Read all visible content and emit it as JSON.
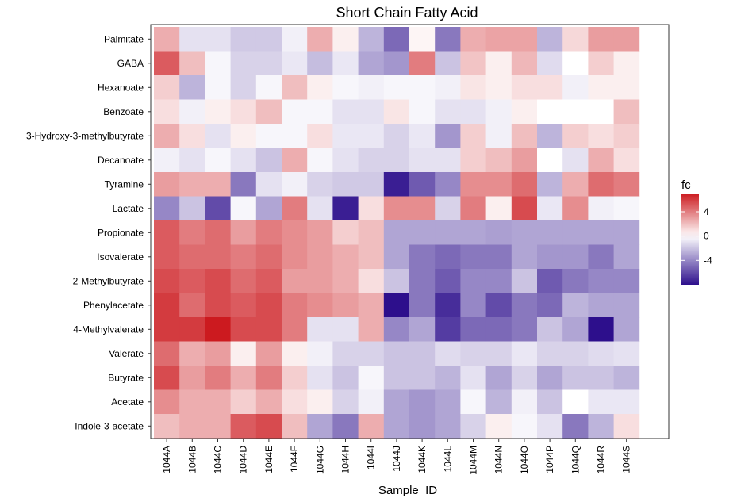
{
  "chart_data": {
    "type": "heatmap",
    "title": "Short Chain Fatty Acid",
    "xlabel": "Sample_ID",
    "ylabel": "",
    "x": [
      "1044A",
      "1044B",
      "1044C",
      "1044D",
      "1044E",
      "1044F",
      "1044G",
      "1044H",
      "1044I",
      "1044J",
      "1044K",
      "1044L",
      "1044M",
      "1044N",
      "1044O",
      "1044P",
      "1044Q",
      "1044R",
      "1044S"
    ],
    "y": [
      "Palmitate",
      "GABA",
      "Hexanoate",
      "Benzoate",
      "3-Hydroxy-3-methylbutyrate",
      "Decanoate",
      "Tyramine",
      "Lactate",
      "Propionate",
      "Isovalerate",
      "2-Methylbutyrate",
      "Phenylacetate",
      "4-Methylvalerate",
      "Valerate",
      "Butyrate",
      "Acetate",
      "Indole-3-acetate"
    ],
    "values": [
      [
        2.5,
        -1.0,
        -1.0,
        -1.8,
        -1.8,
        -0.5,
        2.5,
        0.5,
        -2.5,
        -5.0,
        0.3,
        -4.5,
        2.5,
        2.8,
        2.8,
        -2.5,
        1.2,
        3.0,
        3.0
      ],
      [
        5.0,
        2.0,
        -0.3,
        -1.5,
        -1.5,
        -0.8,
        -2.2,
        -0.8,
        -3.0,
        -3.5,
        4.0,
        -2.0,
        1.8,
        0.5,
        2.2,
        -1.2,
        0.0,
        1.5,
        0.5
      ],
      [
        1.5,
        -2.5,
        -0.3,
        -1.5,
        -0.3,
        2.0,
        0.5,
        -0.3,
        -0.5,
        -0.3,
        -0.3,
        -0.5,
        0.8,
        0.5,
        1.0,
        1.0,
        -0.5,
        0.5,
        0.5
      ],
      [
        1.0,
        -0.5,
        0.5,
        1.0,
        2.0,
        -0.3,
        -0.3,
        -1.0,
        -1.0,
        0.8,
        -0.3,
        -1.0,
        -1.0,
        -0.5,
        0.5,
        0.0,
        0.0,
        0.0,
        2.0
      ],
      [
        2.5,
        1.0,
        -1.0,
        0.5,
        -0.3,
        -0.3,
        1.0,
        -0.8,
        -0.8,
        -1.5,
        -0.8,
        -3.5,
        1.5,
        -0.5,
        2.0,
        -2.5,
        1.5,
        1.0,
        1.5
      ],
      [
        -0.5,
        -1.0,
        -0.3,
        -1.0,
        -2.0,
        2.5,
        -0.3,
        -1.0,
        -1.5,
        -1.5,
        -1.0,
        -1.0,
        1.5,
        2.0,
        3.0,
        0.0,
        -1.0,
        2.5,
        1.0
      ],
      [
        3.0,
        2.5,
        2.5,
        -4.5,
        -1.0,
        -0.5,
        -1.5,
        -1.8,
        -1.8,
        -7.5,
        -5.5,
        -4.0,
        3.5,
        3.5,
        4.5,
        -2.5,
        2.5,
        4.5,
        4.0
      ],
      [
        -4.0,
        -2.0,
        -6.0,
        -0.3,
        -3.0,
        4.0,
        -1.0,
        -7.5,
        1.0,
        3.5,
        3.5,
        -1.5,
        4.0,
        0.5,
        5.5,
        -0.8,
        3.5,
        -0.5,
        -0.3
      ],
      [
        5.0,
        4.0,
        4.5,
        3.0,
        4.0,
        3.5,
        3.0,
        1.5,
        2.0,
        -3.0,
        -3.0,
        -3.0,
        -3.0,
        -3.2,
        -3.0,
        -3.0,
        -3.0,
        -3.0,
        -3.0
      ],
      [
        5.0,
        4.5,
        4.5,
        4.0,
        4.5,
        3.5,
        3.0,
        2.5,
        2.0,
        -3.0,
        -4.5,
        -5.0,
        -4.5,
        -4.5,
        -3.0,
        -3.5,
        -3.5,
        -4.5,
        -3.0
      ],
      [
        5.5,
        5.0,
        5.5,
        4.5,
        5.0,
        3.0,
        3.0,
        2.5,
        1.0,
        -2.0,
        -4.5,
        -5.5,
        -4.0,
        -4.0,
        -2.0,
        -5.5,
        -4.5,
        -4.0,
        -4.0
      ],
      [
        6.0,
        4.5,
        5.5,
        5.0,
        5.5,
        4.0,
        3.5,
        3.0,
        2.5,
        -8.0,
        -4.5,
        -7.0,
        -4.0,
        -6.0,
        -4.5,
        -5.0,
        -2.5,
        -3.0,
        -3.0
      ],
      [
        6.0,
        6.0,
        7.0,
        5.5,
        5.5,
        4.0,
        -1.0,
        -1.0,
        2.5,
        -4.0,
        -3.0,
        -6.5,
        -5.0,
        -5.0,
        -4.5,
        -2.0,
        -3.0,
        -8.0,
        -3.0
      ],
      [
        4.5,
        2.5,
        3.0,
        0.5,
        3.0,
        0.5,
        -0.5,
        -1.5,
        -1.5,
        -2.0,
        -2.0,
        -1.2,
        -1.5,
        -1.5,
        -0.8,
        -1.5,
        -1.5,
        -1.2,
        -1.0
      ],
      [
        5.5,
        3.0,
        4.0,
        2.5,
        4.0,
        1.5,
        -1.0,
        -2.0,
        -0.3,
        -2.0,
        -2.0,
        -2.5,
        -1.0,
        -3.0,
        -1.5,
        -3.0,
        -2.0,
        -2.0,
        -2.5
      ],
      [
        3.5,
        2.5,
        2.5,
        1.5,
        2.5,
        1.0,
        0.5,
        -1.5,
        -0.5,
        -3.0,
        -3.5,
        -3.0,
        -0.3,
        -2.5,
        -0.5,
        -2.0,
        0.0,
        -0.8,
        -0.8
      ],
      [
        2.0,
        2.5,
        2.5,
        5.0,
        5.5,
        2.0,
        -3.0,
        -4.5,
        2.5,
        -3.0,
        -3.5,
        -3.0,
        -1.5,
        0.5,
        -0.3,
        -1.0,
        -4.5,
        -2.5,
        1.0
      ]
    ],
    "legend": {
      "title": "fc",
      "ticks": [
        4,
        0,
        -4
      ],
      "range": [
        -8,
        7
      ],
      "placement": "right",
      "colors": {
        "low": "#2d0f8c",
        "mid": "#ffffff",
        "high": "#cc1a1f"
      }
    },
    "panel_background": "#ffffff",
    "grid": false
  }
}
